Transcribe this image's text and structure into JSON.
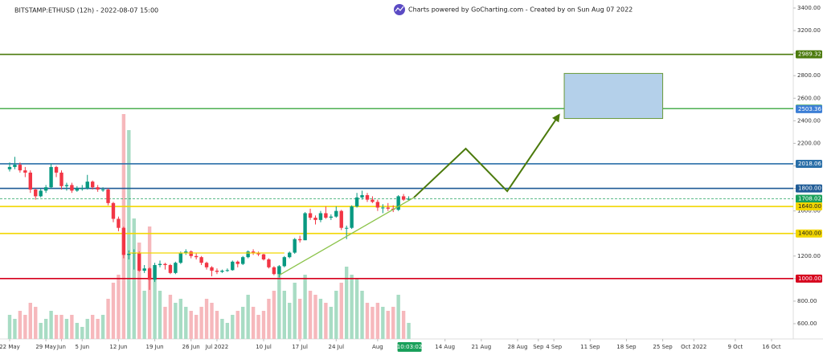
{
  "chart_data": {
    "type": "candlestick",
    "title": "BITSTAMP:ETHUSD (12h) - 2022-08-07 15:00",
    "subtitle": "Charts powered by GoCharting.com - Created by  on Sun Aug 07 2022",
    "countdown": "10:03:02",
    "up_color": "#089981",
    "down_color": "#f23645",
    "up_volume_color": "#a8dcc4",
    "down_volume_color": "#f6b8bc",
    "x": [
      "2022-05-22",
      "2022-05-23",
      "2022-05-24",
      "2022-05-25",
      "2022-05-26",
      "2022-05-27",
      "2022-05-28",
      "2022-05-29",
      "2022-05-30",
      "2022-05-31",
      "2022-06-01",
      "2022-06-02",
      "2022-06-03",
      "2022-06-04",
      "2022-06-05",
      "2022-06-06",
      "2022-06-07",
      "2022-06-08",
      "2022-06-09",
      "2022-06-10",
      "2022-06-11",
      "2022-06-12",
      "2022-06-13",
      "2022-06-14",
      "2022-06-15",
      "2022-06-16",
      "2022-06-17",
      "2022-06-18",
      "2022-06-19",
      "2022-06-20",
      "2022-06-21",
      "2022-06-22",
      "2022-06-23",
      "2022-06-24",
      "2022-06-25",
      "2022-06-26",
      "2022-06-27",
      "2022-06-28",
      "2022-06-29",
      "2022-06-30",
      "2022-07-01",
      "2022-07-02",
      "2022-07-03",
      "2022-07-04",
      "2022-07-05",
      "2022-07-06",
      "2022-07-07",
      "2022-07-08",
      "2022-07-09",
      "2022-07-10",
      "2022-07-11",
      "2022-07-12",
      "2022-07-13",
      "2022-07-14",
      "2022-07-15",
      "2022-07-16",
      "2022-07-17",
      "2022-07-18",
      "2022-07-19",
      "2022-07-20",
      "2022-07-21",
      "2022-07-22",
      "2022-07-23",
      "2022-07-24",
      "2022-07-25",
      "2022-07-26",
      "2022-07-27",
      "2022-07-28",
      "2022-07-29",
      "2022-07-30",
      "2022-07-31",
      "2022-08-01",
      "2022-08-02",
      "2022-08-03",
      "2022-08-04",
      "2022-08-05",
      "2022-08-06",
      "2022-08-07"
    ],
    "open": [
      1970,
      1990,
      2010,
      1960,
      1940,
      1790,
      1730,
      1780,
      1810,
      1990,
      1940,
      1820,
      1830,
      1780,
      1800,
      1800,
      1860,
      1810,
      1790,
      1790,
      1670,
      1530,
      1450,
      1210,
      1220,
      1230,
      1070,
      1090,
      990,
      1120,
      1130,
      1120,
      1050,
      1140,
      1230,
      1240,
      1200,
      1190,
      1140,
      1100,
      1070,
      1060,
      1070,
      1075,
      1150,
      1130,
      1190,
      1240,
      1230,
      1215,
      1170,
      1100,
      1040,
      1110,
      1190,
      1230,
      1350,
      1340,
      1580,
      1540,
      1520,
      1580,
      1540,
      1550,
      1600,
      1450,
      1450,
      1640,
      1720,
      1740,
      1700,
      1680,
      1630,
      1630,
      1620,
      1610,
      1730,
      1700
    ],
    "high": [
      2030,
      2080,
      2030,
      1990,
      1960,
      1800,
      1800,
      1830,
      2020,
      2000,
      1960,
      1850,
      1850,
      1820,
      1830,
      1920,
      1870,
      1830,
      1810,
      1800,
      1680,
      1550,
      1460,
      1250,
      1260,
      1240,
      1120,
      1100,
      1140,
      1160,
      1140,
      1130,
      1150,
      1240,
      1260,
      1250,
      1230,
      1200,
      1150,
      1110,
      1090,
      1080,
      1090,
      1160,
      1160,
      1200,
      1250,
      1260,
      1240,
      1220,
      1180,
      1110,
      1120,
      1200,
      1240,
      1360,
      1380,
      1590,
      1620,
      1560,
      1600,
      1640,
      1570,
      1640,
      1610,
      1470,
      1650,
      1760,
      1780,
      1760,
      1730,
      1700,
      1660,
      1670,
      1650,
      1740,
      1750,
      1730
    ],
    "low": [
      1950,
      1970,
      1940,
      1900,
      1760,
      1700,
      1720,
      1760,
      1800,
      1900,
      1790,
      1780,
      1760,
      1770,
      1780,
      1790,
      1790,
      1770,
      1770,
      1650,
      1500,
      1420,
      1180,
      1170,
      1080,
      1060,
      1050,
      900,
      970,
      1100,
      1080,
      1040,
      1040,
      1130,
      1210,
      1180,
      1170,
      1120,
      1080,
      1020,
      1040,
      1050,
      1060,
      1070,
      1100,
      1120,
      1180,
      1210,
      1200,
      1160,
      1090,
      1030,
      1010,
      1100,
      1180,
      1220,
      1320,
      1340,
      1520,
      1480,
      1500,
      1530,
      1520,
      1540,
      1430,
      1350,
      1440,
      1630,
      1700,
      1680,
      1670,
      1600,
      1580,
      1600,
      1590,
      1600,
      1690,
      1690
    ],
    "close": [
      1990,
      2010,
      1960,
      1940,
      1790,
      1730,
      1780,
      1810,
      1990,
      1940,
      1820,
      1830,
      1780,
      1800,
      1800,
      1860,
      1810,
      1790,
      1790,
      1670,
      1530,
      1450,
      1210,
      1220,
      1230,
      1070,
      1090,
      990,
      1120,
      1130,
      1120,
      1050,
      1140,
      1230,
      1240,
      1200,
      1190,
      1140,
      1100,
      1070,
      1060,
      1070,
      1075,
      1150,
      1130,
      1190,
      1240,
      1230,
      1215,
      1170,
      1100,
      1040,
      1110,
      1190,
      1230,
      1350,
      1340,
      1580,
      1540,
      1520,
      1580,
      1540,
      1550,
      1600,
      1450,
      1450,
      1640,
      1720,
      1740,
      1700,
      1680,
      1630,
      1630,
      1620,
      1610,
      1730,
      1700,
      1708
    ],
    "volume": [
      30,
      25,
      35,
      30,
      45,
      40,
      20,
      25,
      35,
      30,
      30,
      25,
      30,
      20,
      15,
      25,
      30,
      25,
      30,
      50,
      70,
      80,
      280,
      260,
      150,
      120,
      60,
      140,
      90,
      60,
      40,
      55,
      45,
      50,
      40,
      35,
      30,
      40,
      50,
      45,
      35,
      25,
      20,
      30,
      35,
      40,
      55,
      40,
      30,
      35,
      50,
      60,
      90,
      60,
      45,
      70,
      50,
      80,
      60,
      55,
      50,
      45,
      40,
      60,
      70,
      90,
      80,
      75,
      60,
      45,
      40,
      45,
      40,
      35,
      40,
      55,
      35,
      20
    ],
    "xlim": [
      "2022-05-22",
      "2022-10-16"
    ],
    "xticks": [
      {
        "value": "2022-05-22",
        "label": "22 May"
      },
      {
        "value": "2022-05-29",
        "label": "29 May"
      },
      {
        "value": "2022-06-01",
        "label": "Jun"
      },
      {
        "value": "2022-06-05",
        "label": "5 Jun"
      },
      {
        "value": "2022-06-12",
        "label": "12 Jun"
      },
      {
        "value": "2022-06-19",
        "label": "19 Jun"
      },
      {
        "value": "2022-06-26",
        "label": "26 Jun"
      },
      {
        "value": "2022-07-01",
        "label": "Jul 2022"
      },
      {
        "value": "2022-07-10",
        "label": "10 Jul"
      },
      {
        "value": "2022-07-17",
        "label": "17 Jul"
      },
      {
        "value": "2022-07-24",
        "label": "24 Jul"
      },
      {
        "value": "2022-08-01",
        "label": "Aug"
      },
      {
        "value": "2022-08-14",
        "label": "14 Aug"
      },
      {
        "value": "2022-08-21",
        "label": "21 Aug"
      },
      {
        "value": "2022-08-28",
        "label": "28 Aug"
      },
      {
        "value": "2022-09-01",
        "label": "Sep"
      },
      {
        "value": "2022-09-04",
        "label": "4 Sep"
      },
      {
        "value": "2022-09-11",
        "label": "11 Sep"
      },
      {
        "value": "2022-09-18",
        "label": "18 Sep"
      },
      {
        "value": "2022-09-25",
        "label": "25 Sep"
      },
      {
        "value": "2022-10-01",
        "label": "Oct 2022"
      },
      {
        "value": "2022-10-09",
        "label": "9 Oct"
      },
      {
        "value": "2022-10-16",
        "label": "16 Oct"
      }
    ],
    "ylim": [
      600,
      3400
    ],
    "yticks": [
      {
        "value": 3400,
        "label": "3400.00"
      },
      {
        "value": 3200,
        "label": "3200.00"
      },
      {
        "value": 3000,
        "label": "3000.00"
      },
      {
        "value": 2800,
        "label": "2800.00"
      },
      {
        "value": 2600,
        "label": "2600.00"
      },
      {
        "value": 2400,
        "label": "2400.00"
      },
      {
        "value": 2200,
        "label": "2200.00"
      },
      {
        "value": 2000,
        "label": "2000.00"
      },
      {
        "value": 1800,
        "label": "1800.00"
      },
      {
        "value": 1600,
        "label": "1600.00"
      },
      {
        "value": 1400,
        "label": "1400.00"
      },
      {
        "value": 1200,
        "label": "1200.00"
      },
      {
        "value": 1000,
        "label": "1000.00"
      },
      {
        "value": 800,
        "label": "800.00"
      },
      {
        "value": 600,
        "label": "600.00"
      }
    ],
    "levels": [
      {
        "value": 2989.32,
        "label": "2989.32",
        "color": "#4b7a0c",
        "line": true,
        "dashed": false
      },
      {
        "value": 2507.66,
        "label": "2507.66",
        "color": "#4caf50",
        "line": true,
        "dashed": false
      },
      {
        "value": 2503.36,
        "label": "2503.36",
        "color": "#3d7fd6",
        "line": false,
        "dashed": false
      },
      {
        "value": 2018.06,
        "label": "2018.06",
        "color": "#2a6fa8",
        "line": true,
        "dashed": false
      },
      {
        "value": 1800,
        "label": "1800.00",
        "color": "#1f5b96",
        "line": true,
        "dashed": false
      },
      {
        "value": 1708.02,
        "label": "1708.02",
        "color": "#19a05a",
        "line": true,
        "dashed": true
      },
      {
        "value": 1640,
        "label": "1640.00",
        "color": "#f2d600",
        "line": true,
        "dashed": false
      },
      {
        "value": 1400,
        "label": "1400.00",
        "color": "#f2d600",
        "line": true,
        "dashed": false
      },
      {
        "value": 1000,
        "label": "1000.00",
        "color": "#d6001c",
        "line": true,
        "dashed": false
      }
    ],
    "drawings": [
      {
        "kind": "box",
        "x": [
          "2022-09-06",
          "2022-09-25"
        ],
        "y": [
          2420,
          2820
        ],
        "color": "#6a9a3a"
      },
      {
        "kind": "arrow",
        "x": [
          "2022-08-08",
          "2022-08-18",
          "2022-08-26",
          "2022-09-05"
        ],
        "y": [
          1719,
          2153,
          1775,
          2452
        ],
        "color": "#4b7a0c"
      },
      {
        "kind": "line",
        "x": [
          "2022-07-13",
          "2022-08-08"
        ],
        "y": [
          1030,
          1719
        ],
        "color": "#8bc34a"
      },
      {
        "kind": "line",
        "x": [
          "2022-06-14",
          "2022-07-14"
        ],
        "y": [
          1227,
          1227
        ],
        "color": "#f2d600"
      }
    ]
  }
}
